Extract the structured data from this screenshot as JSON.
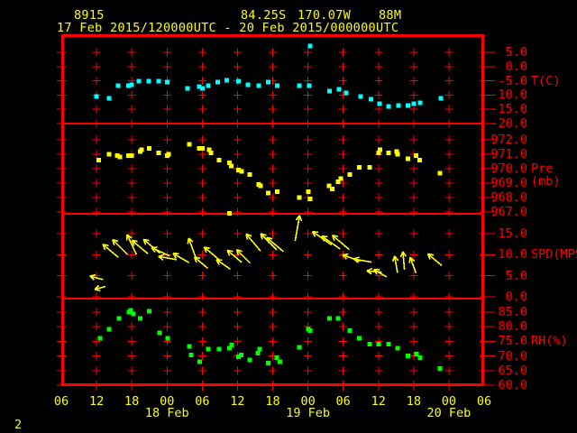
{
  "window_bg": "#000000",
  "header": {
    "station_id": "8915",
    "latitude": "84.25S",
    "longitude": "170.07W",
    "elevation": "88M",
    "time_range": "17 Feb 2015/120000UTC - 20 Feb 2015/000000UTC",
    "text_color": "#ffff00"
  },
  "page_number": "2",
  "colors": {
    "axis": "#ff0000",
    "temperature": "#00ffff",
    "pressure": "#ffff00",
    "wind": "#ffff00",
    "humidity": "#00ff00",
    "time_labels": "#ffff00"
  },
  "x_axis": {
    "hours_start_label_time": "06 UTC 17 Feb",
    "hours_total": 72,
    "hour_labels": [
      "06",
      "12",
      "18",
      "00",
      "06",
      "12",
      "18",
      "00",
      "06",
      "12",
      "18",
      "00",
      "06"
    ],
    "date_labels": [
      {
        "label": "18 Feb",
        "t": 18
      },
      {
        "label": "19 Feb",
        "t": 42
      },
      {
        "label": "20 Feb",
        "t": 66
      }
    ]
  },
  "chart_data": [
    {
      "type": "scatter",
      "name": "temperature",
      "ylabel": "T(C)",
      "ylabel_at": -5,
      "yticks": [
        5,
        0,
        -5,
        -10,
        -15,
        -20
      ],
      "marker_color": "#00ffff",
      "x_unit": "hours since 06UTC 17 Feb 2015",
      "points": [
        [
          6.0,
          -10.5
        ],
        [
          8.1,
          -11.1
        ],
        [
          9.7,
          -6.7
        ],
        [
          11.4,
          -6.7
        ],
        [
          12.0,
          -6.4
        ],
        [
          13.2,
          -5.1
        ],
        [
          14.9,
          -5.1
        ],
        [
          16.6,
          -5.1
        ],
        [
          18.0,
          -5.4
        ],
        [
          21.5,
          -7.7
        ],
        [
          23.5,
          -7.0
        ],
        [
          24.0,
          -7.7
        ],
        [
          25.0,
          -6.7
        ],
        [
          26.6,
          -5.4
        ],
        [
          28.2,
          -4.8
        ],
        [
          30.2,
          -5.1
        ],
        [
          31.8,
          -6.4
        ],
        [
          33.6,
          -6.7
        ],
        [
          35.2,
          -5.4
        ],
        [
          36.8,
          -6.7
        ],
        [
          40.5,
          -6.7
        ],
        [
          42.2,
          -6.7
        ],
        [
          42.4,
          7.2
        ],
        [
          45.7,
          -8.6
        ],
        [
          47.3,
          -8.0
        ],
        [
          48.5,
          -9.2
        ],
        [
          51.0,
          -10.5
        ],
        [
          52.7,
          -11.5
        ],
        [
          54.2,
          -13.0
        ],
        [
          55.7,
          -14.0
        ],
        [
          57.4,
          -13.7
        ],
        [
          59.0,
          -13.7
        ],
        [
          60.0,
          -13.0
        ],
        [
          61.1,
          -12.7
        ],
        [
          64.6,
          -11.1
        ]
      ]
    },
    {
      "type": "scatter",
      "name": "pressure",
      "ylabel": "Pre (mb)",
      "ylabel_at": 970,
      "yticks": [
        972,
        971,
        970,
        969,
        968,
        967
      ],
      "marker_color": "#ffff00",
      "x_unit": "hours since 06UTC 17 Feb 2015",
      "points": [
        [
          6.4,
          970.6
        ],
        [
          8.1,
          971.0
        ],
        [
          9.5,
          970.9
        ],
        [
          10.0,
          970.8
        ],
        [
          11.4,
          970.9
        ],
        [
          12.0,
          970.9
        ],
        [
          13.4,
          971.2
        ],
        [
          13.7,
          971.3
        ],
        [
          15.0,
          971.4
        ],
        [
          16.6,
          971.1
        ],
        [
          18.0,
          970.9
        ],
        [
          18.3,
          971.0
        ],
        [
          21.8,
          971.7
        ],
        [
          23.5,
          971.4
        ],
        [
          24.0,
          971.4
        ],
        [
          25.2,
          971.3
        ],
        [
          25.5,
          971.1
        ],
        [
          26.9,
          970.6
        ],
        [
          28.6,
          970.4
        ],
        [
          28.6,
          966.9
        ],
        [
          28.9,
          970.2
        ],
        [
          30.2,
          969.9
        ],
        [
          30.7,
          969.8
        ],
        [
          32.1,
          969.6
        ],
        [
          33.6,
          968.9
        ],
        [
          33.9,
          968.8
        ],
        [
          35.2,
          968.3
        ],
        [
          36.8,
          968.4
        ],
        [
          40.5,
          968.0
        ],
        [
          42.1,
          968.4
        ],
        [
          42.4,
          967.9
        ],
        [
          45.6,
          968.8
        ],
        [
          46.1,
          968.6
        ],
        [
          47.1,
          969.1
        ],
        [
          47.6,
          969.3
        ],
        [
          49.1,
          969.6
        ],
        [
          50.7,
          970.1
        ],
        [
          52.5,
          970.1
        ],
        [
          54.0,
          971.1
        ],
        [
          54.3,
          971.3
        ],
        [
          55.7,
          971.1
        ],
        [
          57.1,
          971.2
        ],
        [
          57.3,
          971.0
        ],
        [
          59.0,
          970.7
        ],
        [
          60.4,
          970.9
        ],
        [
          61.0,
          970.6
        ],
        [
          64.5,
          969.7
        ]
      ]
    },
    {
      "type": "wind_vector",
      "name": "wind_speed",
      "ylabel": "SPD(MPS)",
      "ylabel_at": 10,
      "yticks": [
        15,
        10,
        5,
        0
      ],
      "marker_color": "#ffff00",
      "x_unit": "hours since 06UTC 17 Feb 2015",
      "dir_convention": "arrow pointing direction, degrees CCW from screen-right",
      "points": [
        [
          6.0,
          4.5,
          165
        ],
        [
          6.6,
          2.1,
          195
        ],
        [
          8.4,
          10.9,
          140
        ],
        [
          10.0,
          11.8,
          135
        ],
        [
          12.0,
          12.4,
          115
        ],
        [
          13.4,
          11.8,
          140
        ],
        [
          15.4,
          12.0,
          140
        ],
        [
          16.9,
          10.7,
          155
        ],
        [
          18.1,
          9.2,
          170
        ],
        [
          20.4,
          9.2,
          150
        ],
        [
          22.3,
          11.6,
          110
        ],
        [
          23.8,
          8.1,
          140
        ],
        [
          25.6,
          10.3,
          140
        ],
        [
          27.6,
          7.7,
          145
        ],
        [
          29.5,
          9.6,
          140
        ],
        [
          31.0,
          9.6,
          135
        ],
        [
          32.7,
          12.9,
          130
        ],
        [
          35.3,
          13.1,
          135
        ],
        [
          36.4,
          12.4,
          140
        ],
        [
          40.2,
          16.3,
          80
        ],
        [
          44.4,
          13.9,
          145
        ],
        [
          45.9,
          12.9,
          145
        ],
        [
          47.6,
          12.9,
          140
        ],
        [
          49.4,
          9.2,
          160
        ],
        [
          51.3,
          8.6,
          170
        ],
        [
          53.3,
          6.0,
          175
        ],
        [
          54.3,
          5.6,
          150
        ],
        [
          57.0,
          7.7,
          100
        ],
        [
          58.3,
          8.6,
          95
        ],
        [
          59.9,
          7.5,
          110
        ],
        [
          63.6,
          8.8,
          140
        ]
      ]
    },
    {
      "type": "scatter",
      "name": "relative_humidity",
      "ylabel": "RH(%)",
      "ylabel_at": 75,
      "yticks": [
        85,
        80,
        75,
        70,
        65,
        60
      ],
      "marker_color": "#00ff00",
      "x_unit": "hours since 06UTC 17 Feb 2015",
      "points": [
        [
          6.6,
          76.1
        ],
        [
          8.1,
          79.2
        ],
        [
          9.8,
          82.9
        ],
        [
          11.5,
          85.0
        ],
        [
          11.8,
          85.6
        ],
        [
          12.3,
          84.4
        ],
        [
          13.4,
          82.9
        ],
        [
          15.0,
          85.3
        ],
        [
          16.7,
          77.9
        ],
        [
          18.1,
          76.1
        ],
        [
          21.8,
          73.3
        ],
        [
          22.1,
          70.3
        ],
        [
          23.6,
          68.1
        ],
        [
          25.0,
          72.4
        ],
        [
          26.9,
          72.4
        ],
        [
          28.6,
          72.7
        ],
        [
          29.0,
          73.7
        ],
        [
          30.2,
          69.7
        ],
        [
          30.6,
          70.3
        ],
        [
          32.1,
          68.7
        ],
        [
          33.5,
          70.9
        ],
        [
          33.8,
          72.4
        ],
        [
          35.2,
          67.5
        ],
        [
          36.7,
          69.4
        ],
        [
          37.2,
          68.1
        ],
        [
          40.5,
          73.0
        ],
        [
          42.1,
          79.2
        ],
        [
          42.4,
          78.6
        ],
        [
          45.7,
          82.9
        ],
        [
          47.1,
          82.9
        ],
        [
          49.1,
          78.6
        ],
        [
          50.7,
          76.1
        ],
        [
          52.5,
          74.0
        ],
        [
          54.0,
          74.0
        ],
        [
          55.7,
          74.0
        ],
        [
          57.3,
          72.7
        ],
        [
          59.0,
          70.0
        ],
        [
          60.5,
          70.6
        ],
        [
          61.1,
          69.4
        ],
        [
          64.5,
          65.7
        ]
      ]
    }
  ]
}
